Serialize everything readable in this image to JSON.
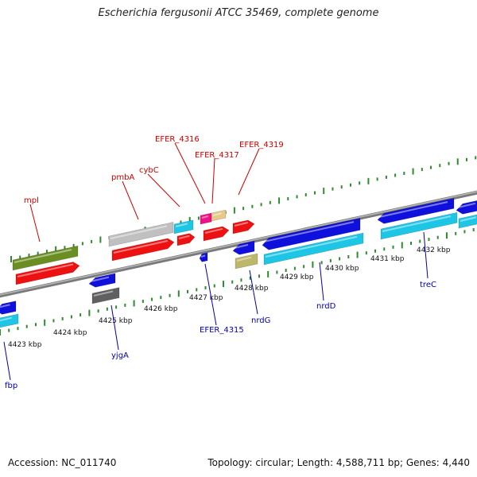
{
  "title": "Escherichia fergusonii ATCC 35469, complete genome",
  "footer": {
    "accession": "Accession: NC_011740",
    "summary": "Topology: circular; Length: 4,588,711 bp; Genes: 4,440"
  },
  "colors": {
    "backbone": "#8e8e8e",
    "tick": "#2e8b2e",
    "label_forward": "#cc0000",
    "label_reverse": "#0000aa",
    "gene_red": "#ee1111",
    "gene_blue": "#1010dd",
    "gene_cyan": "#1ec6e6",
    "gene_olive": "#6b8e23",
    "gene_gray": "#c0c0c0",
    "gene_darkgray": "#606060",
    "gene_khaki": "#bdb76b",
    "gene_magenta": "#ee1188",
    "gene_tan": "#e6c88a"
  },
  "kbp_labels": [
    "4423 kbp",
    "4424 kbp",
    "4425 kbp",
    "4426 kbp",
    "4427 kbp",
    "4428 kbp",
    "4429 kbp",
    "4430 kbp",
    "4431 kbp",
    "4432 kbp"
  ],
  "gene_labels_top": [
    "mpl",
    "pmbA",
    "cybC",
    "EFER_4316",
    "EFER_4317",
    "EFER_4319"
  ],
  "gene_labels_bottom": [
    "fbp",
    "yjgA",
    "EFER_4315",
    "nrdG",
    "nrdD",
    "treC"
  ]
}
